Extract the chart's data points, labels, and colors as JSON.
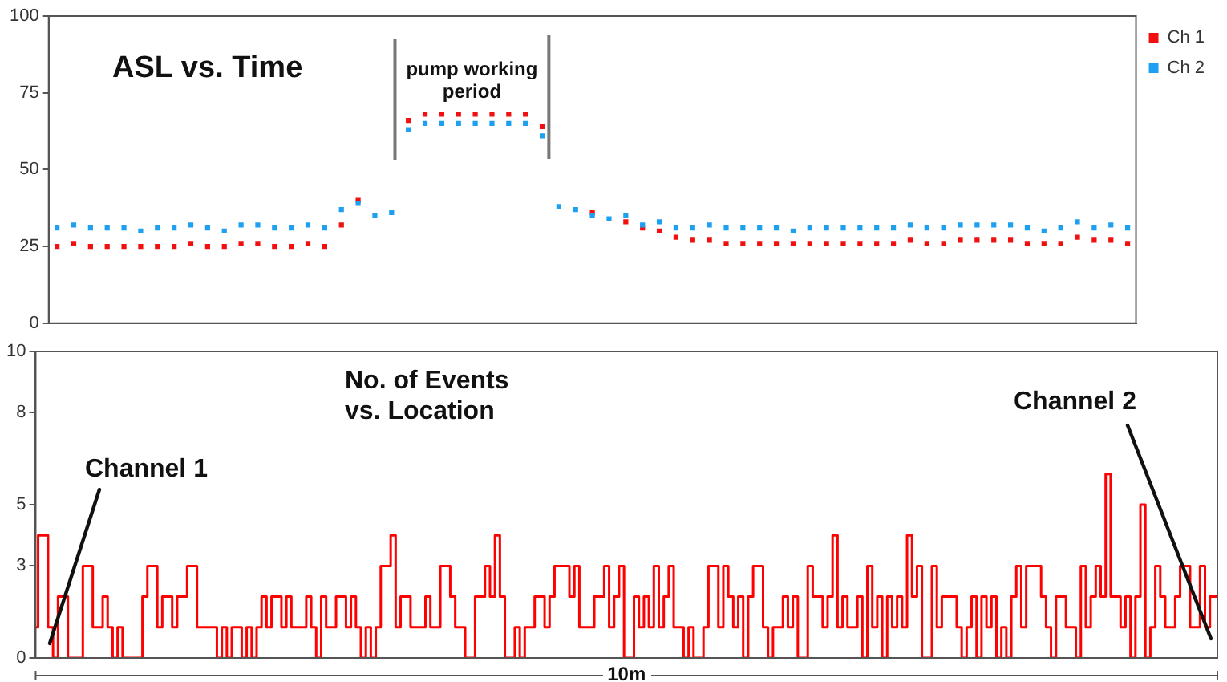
{
  "chart_data": [
    {
      "type": "scatter",
      "title": "ASL vs. Time",
      "categories": [
        null,
        null,
        null,
        null,
        null,
        null,
        null,
        null,
        null,
        null,
        null,
        null,
        null,
        null,
        null,
        null,
        null,
        null,
        null,
        null,
        null,
        null,
        null,
        null,
        null,
        null,
        null,
        null,
        null,
        null,
        null,
        null,
        null,
        null,
        null,
        null,
        null,
        null,
        null,
        null,
        null,
        null,
        null,
        null,
        null,
        null,
        null,
        null,
        null,
        null,
        null,
        null,
        null,
        null,
        null,
        null,
        null,
        null,
        null,
        null,
        null,
        null,
        null,
        null,
        null
      ],
      "series": [
        {
          "name": "Ch 1",
          "color": "#f01010",
          "values": [
            25,
            26,
            25,
            25,
            25,
            25,
            25,
            25,
            26,
            25,
            25,
            26,
            26,
            25,
            25,
            26,
            25,
            32,
            40,
            null,
            null,
            66,
            68,
            68,
            68,
            68,
            68,
            68,
            68,
            64,
            null,
            null,
            36,
            null,
            33,
            31,
            30,
            28,
            27,
            27,
            26,
            26,
            26,
            26,
            26,
            26,
            26,
            26,
            26,
            26,
            26,
            27,
            26,
            26,
            27,
            27,
            27,
            27,
            26,
            26,
            26,
            28,
            27,
            27,
            26
          ]
        },
        {
          "name": "Ch 2",
          "color": "#1ea0f0",
          "values": [
            31,
            32,
            31,
            31,
            31,
            30,
            31,
            31,
            32,
            31,
            30,
            32,
            32,
            31,
            31,
            32,
            31,
            37,
            39,
            35,
            36,
            63,
            65,
            65,
            65,
            65,
            65,
            65,
            65,
            61,
            38,
            37,
            35,
            34,
            35,
            32,
            33,
            31,
            31,
            32,
            31,
            31,
            31,
            31,
            30,
            31,
            31,
            31,
            31,
            31,
            31,
            32,
            31,
            31,
            32,
            32,
            32,
            32,
            31,
            30,
            31,
            33,
            31,
            32,
            31
          ]
        }
      ],
      "ylim": [
        0,
        100
      ],
      "yticks": [
        0,
        25,
        50,
        75,
        100
      ],
      "annotations": [
        "pump working period"
      ],
      "marker": "square",
      "legend": "top right",
      "grid": false,
      "tick_labels": "y"
    },
    {
      "type": "step",
      "title": "No. of Events\nvs. Location",
      "xlabel": "10m",
      "categories": [
        null,
        null,
        null,
        null,
        null,
        null,
        null,
        null,
        null,
        null,
        null,
        null,
        null,
        null,
        null,
        null,
        null,
        null,
        null,
        null,
        null,
        null,
        null,
        null,
        null,
        null,
        null,
        null,
        null,
        null,
        null,
        null,
        null,
        null,
        null,
        null,
        null,
        null,
        null,
        null,
        null,
        null,
        null,
        null,
        null,
        null,
        null,
        null,
        null,
        null,
        null,
        null,
        null,
        null,
        null,
        null,
        null,
        null,
        null,
        null,
        null,
        null,
        null,
        null,
        null,
        null,
        null,
        null,
        null,
        null,
        null,
        null,
        null,
        null,
        null,
        null,
        null,
        null,
        null,
        null,
        null,
        null,
        null,
        null,
        null,
        null,
        null,
        null,
        null,
        null,
        null,
        null,
        null,
        null,
        null,
        null,
        null,
        null,
        null,
        null,
        null,
        null,
        null,
        null,
        null,
        null,
        null,
        null,
        null,
        null,
        null,
        null,
        null,
        null,
        null,
        null,
        null,
        null,
        null,
        null,
        null,
        null,
        null,
        null,
        null,
        null,
        null,
        null,
        null,
        null,
        null,
        null,
        null,
        null,
        null,
        null,
        null,
        null,
        null,
        null,
        null,
        null,
        null,
        null,
        null,
        null,
        null,
        null,
        null,
        null,
        null,
        null,
        null,
        null,
        null,
        null,
        null,
        null,
        null,
        null,
        null,
        null,
        null,
        null,
        null,
        null,
        null,
        null,
        null,
        null,
        null,
        null,
        null,
        null,
        null,
        null,
        null,
        null,
        null,
        null,
        null,
        null,
        null,
        null,
        null,
        null,
        null,
        null,
        null,
        null,
        null,
        null,
        null,
        null,
        null,
        null,
        null,
        null,
        null,
        null,
        null,
        null,
        null,
        null,
        null,
        null,
        null,
        null,
        null,
        null,
        null,
        null,
        null,
        null,
        null,
        null,
        null,
        null,
        null,
        null,
        null,
        null,
        null,
        null,
        null,
        null,
        null,
        null,
        null,
        null,
        null,
        null,
        null,
        null,
        null,
        null,
        null,
        null,
        null
      ],
      "color": "#ff0000",
      "values": [
        1,
        4,
        4,
        1,
        0,
        2,
        2,
        0,
        0,
        0,
        3,
        3,
        1,
        1,
        2,
        1,
        0,
        1,
        0,
        0,
        0,
        0,
        2,
        3,
        3,
        1,
        2,
        2,
        1,
        2,
        2,
        3,
        3,
        1,
        1,
        1,
        1,
        0,
        1,
        0,
        1,
        1,
        0,
        1,
        0,
        1,
        2,
        1,
        2,
        2,
        1,
        2,
        1,
        1,
        1,
        2,
        1,
        0,
        2,
        1,
        1,
        2,
        2,
        1,
        2,
        1,
        0,
        1,
        0,
        1,
        3,
        3,
        4,
        1,
        2,
        2,
        1,
        1,
        1,
        2,
        1,
        1,
        3,
        3,
        2,
        1,
        1,
        0,
        0,
        2,
        2,
        3,
        2,
        4,
        2,
        0,
        0,
        1,
        0,
        1,
        1,
        2,
        2,
        1,
        2,
        3,
        3,
        3,
        2,
        3,
        1,
        1,
        1,
        2,
        2,
        3,
        1,
        2,
        3,
        0,
        0,
        2,
        1,
        2,
        1,
        3,
        1,
        2,
        3,
        1,
        1,
        0,
        1,
        0,
        0,
        1,
        3,
        3,
        1,
        3,
        2,
        1,
        2,
        0,
        2,
        3,
        3,
        1,
        0,
        1,
        1,
        2,
        1,
        2,
        0,
        0,
        3,
        2,
        2,
        1,
        2,
        4,
        1,
        2,
        1,
        1,
        2,
        0,
        3,
        1,
        2,
        0,
        2,
        1,
        2,
        1,
        4,
        2,
        3,
        0,
        0,
        3,
        1,
        2,
        2,
        2,
        1,
        0,
        1,
        2,
        0,
        2,
        1,
        2,
        0,
        1,
        0,
        2,
        3,
        1,
        3,
        3,
        3,
        2,
        1,
        0,
        2,
        2,
        1,
        1,
        0,
        3,
        1,
        2,
        3,
        2,
        6,
        2,
        2,
        1,
        2,
        0,
        2,
        5,
        0,
        1,
        3,
        2,
        1,
        1,
        2,
        3,
        3,
        1,
        1,
        3,
        1,
        2,
        2
      ],
      "ylim": [
        0,
        10
      ],
      "yticks": [
        0,
        3,
        5,
        8,
        10
      ],
      "annotations": [
        "Channel 1",
        "Channel 2"
      ],
      "grid": false,
      "tick_labels": "y"
    }
  ]
}
